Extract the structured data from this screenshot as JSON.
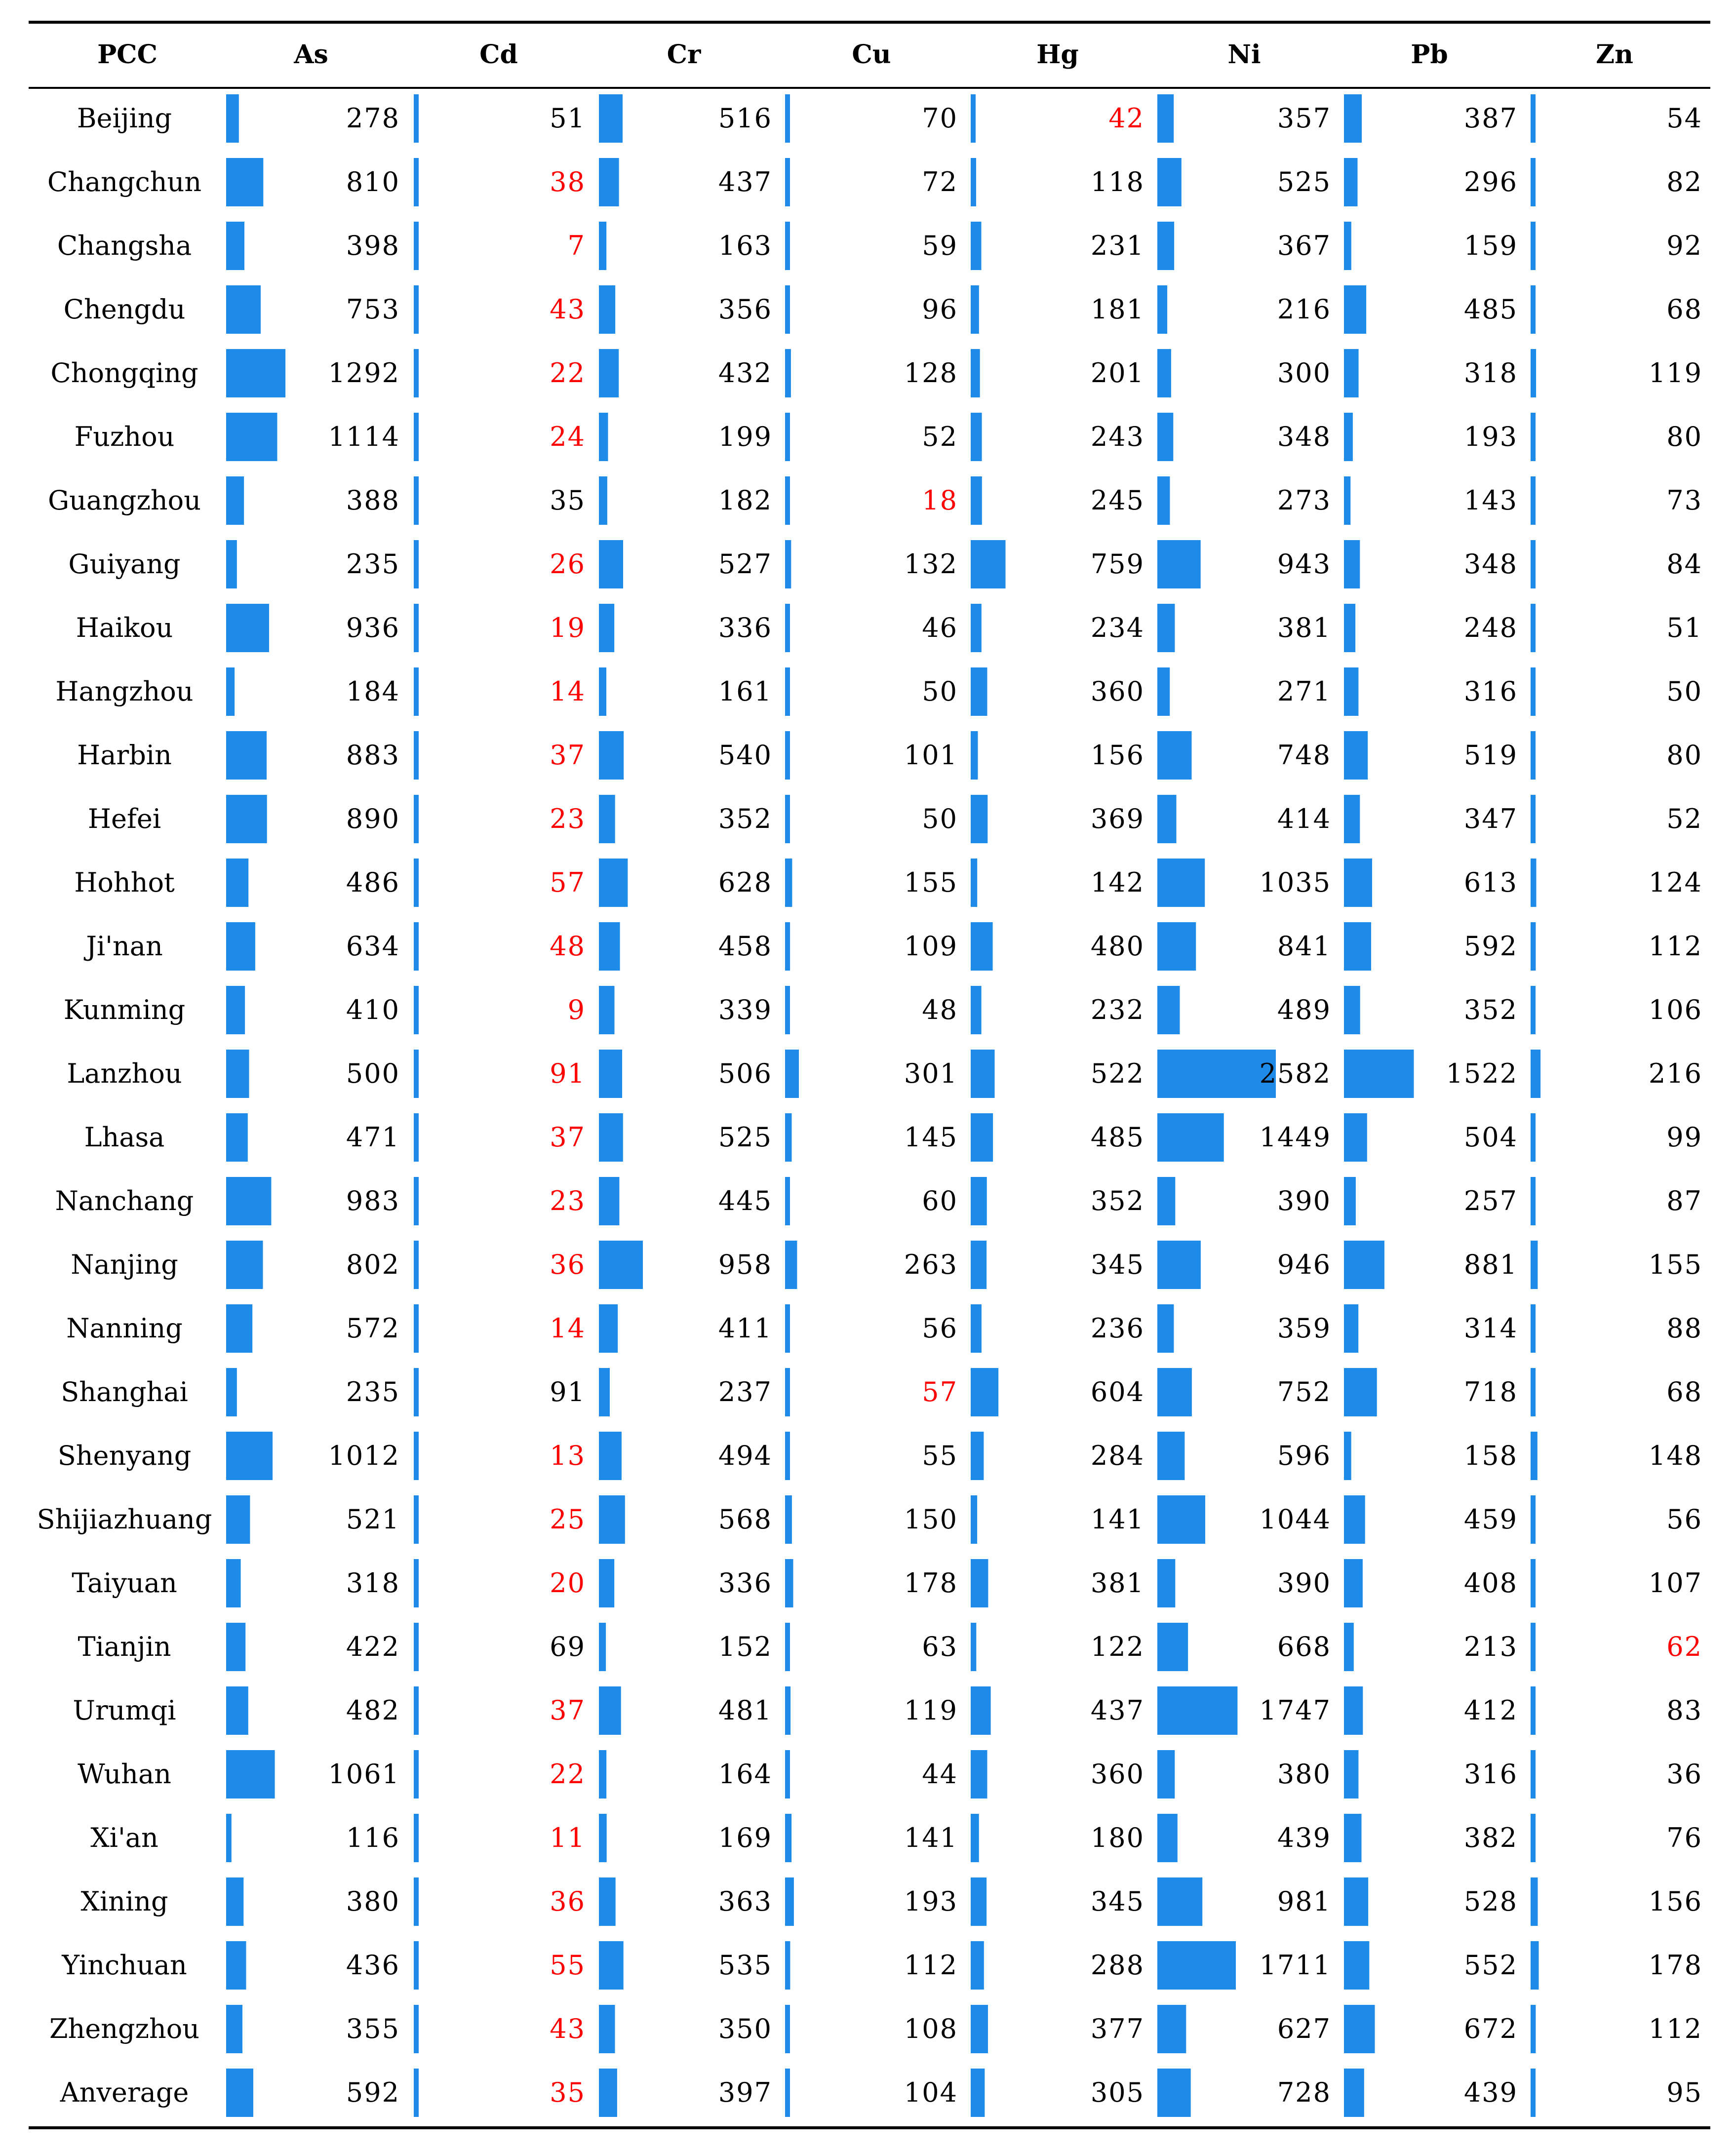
{
  "chart_data": {
    "type": "table",
    "title": "",
    "header_row_label": "PCC",
    "columns": [
      "As",
      "Cd",
      "Cr",
      "Cu",
      "Hg",
      "Ni",
      "Pb",
      "Zn"
    ],
    "cities": [
      "Beijing",
      "Changchun",
      "Changsha",
      "Chengdu",
      "Chongqing",
      "Fuzhou",
      "Guangzhou",
      "Guiyang",
      "Haikou",
      "Hangzhou",
      "Harbin",
      "Hefei",
      "Hohhot",
      "Ji'nan",
      "Kunming",
      "Lanzhou",
      "Lhasa",
      "Nanchang",
      "Nanjing",
      "Nanning",
      "Shanghai",
      "Shenyang",
      "Shijiazhuang",
      "Taiyuan",
      "Tianjin",
      "Urumqi",
      "Wuhan",
      "Xi'an",
      "Xining",
      "Yinchuan",
      "Zhengzhou",
      "Anverage"
    ],
    "values": [
      [
        278,
        51,
        516,
        70,
        42,
        357,
        387,
        54
      ],
      [
        810,
        38,
        437,
        72,
        118,
        525,
        296,
        82
      ],
      [
        398,
        7,
        163,
        59,
        231,
        367,
        159,
        92
      ],
      [
        753,
        43,
        356,
        96,
        181,
        216,
        485,
        68
      ],
      [
        1292,
        22,
        432,
        128,
        201,
        300,
        318,
        119
      ],
      [
        1114,
        24,
        199,
        52,
        243,
        348,
        193,
        80
      ],
      [
        388,
        35,
        182,
        18,
        245,
        273,
        143,
        73
      ],
      [
        235,
        26,
        527,
        132,
        759,
        943,
        348,
        84
      ],
      [
        936,
        19,
        336,
        46,
        234,
        381,
        248,
        51
      ],
      [
        184,
        14,
        161,
        50,
        360,
        271,
        316,
        50
      ],
      [
        883,
        37,
        540,
        101,
        156,
        748,
        519,
        80
      ],
      [
        890,
        23,
        352,
        50,
        369,
        414,
        347,
        52
      ],
      [
        486,
        57,
        628,
        155,
        142,
        1035,
        613,
        124
      ],
      [
        634,
        48,
        458,
        109,
        480,
        841,
        592,
        112
      ],
      [
        410,
        9,
        339,
        48,
        232,
        489,
        352,
        106
      ],
      [
        500,
        91,
        506,
        301,
        522,
        2582,
        1522,
        216
      ],
      [
        471,
        37,
        525,
        145,
        485,
        1449,
        504,
        99
      ],
      [
        983,
        23,
        445,
        60,
        352,
        390,
        257,
        87
      ],
      [
        802,
        36,
        958,
        263,
        345,
        946,
        881,
        155
      ],
      [
        572,
        14,
        411,
        56,
        236,
        359,
        314,
        88
      ],
      [
        235,
        91,
        237,
        57,
        604,
        752,
        718,
        68
      ],
      [
        1012,
        13,
        494,
        55,
        284,
        596,
        158,
        148
      ],
      [
        521,
        25,
        568,
        150,
        141,
        1044,
        459,
        56
      ],
      [
        318,
        20,
        336,
        178,
        381,
        390,
        408,
        107
      ],
      [
        422,
        69,
        152,
        63,
        122,
        668,
        213,
        62
      ],
      [
        482,
        37,
        481,
        119,
        437,
        1747,
        412,
        83
      ],
      [
        1061,
        22,
        164,
        44,
        360,
        380,
        316,
        36
      ],
      [
        116,
        11,
        169,
        141,
        180,
        439,
        382,
        76
      ],
      [
        380,
        36,
        363,
        193,
        345,
        981,
        528,
        156
      ],
      [
        436,
        55,
        535,
        112,
        288,
        1711,
        552,
        178
      ],
      [
        355,
        43,
        350,
        108,
        377,
        627,
        672,
        112
      ],
      [
        592,
        35,
        397,
        104,
        305,
        728,
        439,
        95
      ]
    ],
    "red_cells": [
      [
        0,
        4
      ],
      [
        1,
        1
      ],
      [
        2,
        1
      ],
      [
        3,
        1
      ],
      [
        4,
        1
      ],
      [
        5,
        1
      ],
      [
        6,
        3
      ],
      [
        7,
        1
      ],
      [
        8,
        1
      ],
      [
        9,
        1
      ],
      [
        10,
        1
      ],
      [
        11,
        1
      ],
      [
        12,
        1
      ],
      [
        13,
        1
      ],
      [
        14,
        1
      ],
      [
        15,
        1
      ],
      [
        16,
        1
      ],
      [
        17,
        1
      ],
      [
        18,
        1
      ],
      [
        19,
        1
      ],
      [
        20,
        3
      ],
      [
        21,
        1
      ],
      [
        22,
        1
      ],
      [
        23,
        1
      ],
      [
        24,
        7
      ],
      [
        25,
        1
      ],
      [
        26,
        1
      ],
      [
        27,
        1
      ],
      [
        28,
        1
      ],
      [
        29,
        1
      ],
      [
        30,
        1
      ],
      [
        31,
        1
      ]
    ],
    "bar_scale_max": 2582,
    "colors": {
      "bar": "#1f8be8",
      "highlight_text": "#ff0000",
      "text": "#000000",
      "rule": "#000000"
    }
  }
}
